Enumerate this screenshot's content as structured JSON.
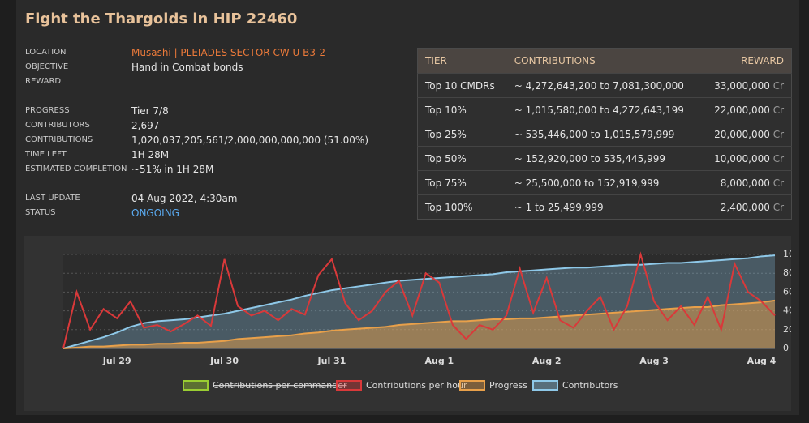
{
  "title": "Fight the Thargoids in HIP 22460",
  "details": [
    [
      {
        "label": "LOCATION",
        "value": "Musashi | PLEIADES SECTOR CW-U B3-2"
      },
      {
        "label": "OBJECTIVE",
        "value": "Hand in Combat bonds"
      },
      {
        "label": "REWARD"
      }
    ],
    [
      {
        "label": "PROGRESS",
        "value": "Tier 7/8"
      },
      {
        "label": "CONTRIBUTORS",
        "value": "2,697"
      },
      {
        "label": "CONTRIBUTIONS",
        "value": "1,020,037,205,561/2,000,000,000,000 (51.00%)"
      },
      {
        "label": "TIME LEFT",
        "value": "1H 28M"
      },
      {
        "label": "ESTIMATED COMPLETION",
        "value": "~51% in 1H 28M"
      }
    ],
    [
      {
        "label": "LAST UPDATE",
        "value": "04 Aug 2022, 4:30am"
      },
      {
        "label": "STATUS",
        "value": "ONGOING"
      }
    ]
  ],
  "tiers": {
    "columns": [
      "TIER",
      "CONTRIBUTIONS",
      "REWARD"
    ],
    "unit": "Cr",
    "rows": [
      [
        "Top 10 CMDRs",
        "~ 4,272,643,200 to 7,081,300,000",
        "33,000,000"
      ],
      [
        "Top 10%",
        "~ 1,015,580,000 to 4,272,643,199",
        "22,000,000"
      ],
      [
        "Top 25%",
        "~ 535,446,000 to 1,015,579,999",
        "20,000,000"
      ],
      [
        "Top 50%",
        "~ 152,920,000 to 535,445,999",
        "10,000,000"
      ],
      [
        "Top 75%",
        "~ 25,500,000 to 152,919,999",
        "8,000,000"
      ],
      [
        "Top 100%",
        "~ 1 to 25,499,999",
        "2,400,000"
      ]
    ]
  },
  "chart_data": {
    "type": "line",
    "categories": [
      null,
      null,
      null,
      null,
      "Jul 29",
      null,
      null,
      null,
      null,
      null,
      null,
      null,
      "Jul 30",
      null,
      null,
      null,
      null,
      null,
      null,
      null,
      "Jul 31",
      null,
      null,
      null,
      null,
      null,
      null,
      null,
      "Aug 1",
      null,
      null,
      null,
      null,
      null,
      null,
      null,
      "Aug 2",
      null,
      null,
      null,
      null,
      null,
      null,
      null,
      "Aug 3",
      null,
      null,
      null,
      null,
      null,
      null,
      null,
      "Aug 4",
      null
    ],
    "ylim": [
      0,
      100
    ],
    "yticks": [
      0,
      20,
      40,
      60,
      80,
      100
    ],
    "grid": true,
    "series": [
      {
        "name": "Contributions per commander",
        "color": "#9acd32",
        "visible": false
      },
      {
        "name": "Contributions per hour",
        "color": "#d9393a",
        "fill": false,
        "values": [
          0,
          60,
          20,
          42,
          32,
          50,
          22,
          25,
          18,
          26,
          35,
          24,
          95,
          45,
          35,
          40,
          30,
          42,
          36,
          78,
          95,
          48,
          30,
          40,
          60,
          72,
          35,
          80,
          70,
          25,
          10,
          25,
          20,
          35,
          85,
          38,
          75,
          30,
          22,
          40,
          55,
          20,
          45,
          100,
          50,
          30,
          45,
          25,
          55,
          20,
          90,
          60,
          50,
          35
        ]
      },
      {
        "name": "Progress",
        "color": "#e8a04a",
        "fill": true,
        "values": [
          0,
          1,
          2,
          2,
          3,
          4,
          4,
          5,
          5,
          6,
          6,
          7,
          8,
          10,
          11,
          12,
          13,
          14,
          16,
          17,
          19,
          20,
          21,
          22,
          23,
          25,
          26,
          27,
          28,
          29,
          29,
          30,
          31,
          31,
          32,
          32,
          33,
          34,
          35,
          36,
          37,
          38,
          39,
          40,
          41,
          42,
          43,
          44,
          44,
          46,
          47,
          48,
          49,
          51
        ]
      },
      {
        "name": "Contributors",
        "color": "#8ec8e8",
        "fill": true,
        "values": [
          0,
          4,
          8,
          12,
          17,
          23,
          27,
          29,
          30,
          31,
          33,
          35,
          37,
          40,
          43,
          46,
          49,
          52,
          56,
          59,
          62,
          64,
          66,
          68,
          70,
          72,
          73,
          74,
          75,
          76,
          77,
          78,
          79,
          81,
          82,
          83,
          84,
          85,
          86,
          86,
          87,
          88,
          89,
          89,
          90,
          91,
          91,
          92,
          93,
          94,
          95,
          96,
          98,
          99
        ]
      }
    ]
  }
}
